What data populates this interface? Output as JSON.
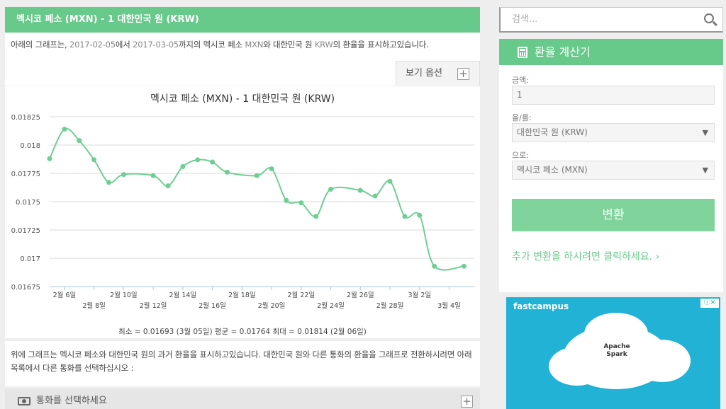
{
  "header": {
    "title": "멕시코 페소 (MXN) - 1 대한민국 원 (KRW)"
  },
  "intro": {
    "text_before": "아래의 그래프는, ",
    "date_start": "2017-02-05",
    "text_mid1": "에서 ",
    "date_end": "2017-03-05",
    "text_mid2": "까지의 멕시코 페소 ",
    "code1": "MXN",
    "text_mid3": "와 대한민국 원 ",
    "code2": "KRW",
    "text_after": "의 환율을 표시하고있습니다."
  },
  "view_options": {
    "label": "보기 옵션"
  },
  "chart_data": {
    "type": "line",
    "title": "멕시코 페소 (MXN) - 1 대한민국 원 (KRW)",
    "x": [
      "2월 5일",
      "2월 6일",
      "2월 7일",
      "2월 8일",
      "2월 9일",
      "2월 10일",
      "2월 12일",
      "2월 13일",
      "2월 14일",
      "2월 15일",
      "2월 16일",
      "2월 17일",
      "2월 19일",
      "2월 20일",
      "2월 21일",
      "2월 22일",
      "2월 23일",
      "2월 24일",
      "2월 26일",
      "2월 27일",
      "2월 28일",
      "3월 1일",
      "3월 2일",
      "3월 3일",
      "3월 5일"
    ],
    "values": [
      0.01788,
      0.01814,
      0.01804,
      0.01787,
      0.01767,
      0.01774,
      0.01773,
      0.01764,
      0.01781,
      0.01787,
      0.01785,
      0.01776,
      0.01773,
      0.01779,
      0.01751,
      0.01749,
      0.01737,
      0.01761,
      0.0176,
      0.01755,
      0.01768,
      0.01737,
      0.01738,
      0.01693,
      0.01693
    ],
    "x_positions": [
      0,
      1,
      2,
      3,
      4,
      5,
      7,
      8,
      9,
      10,
      11,
      12,
      14,
      15,
      16,
      17,
      18,
      19,
      21,
      22,
      23,
      24,
      25,
      26,
      28
    ],
    "x_tick_labels": [
      "2월 6일",
      "2월 8일",
      "2월 10일",
      "2월 12일",
      "2월 14일",
      "2월 16일",
      "2월 18일",
      "2월 20일",
      "2월 22일",
      "2월 24일",
      "2월 26일",
      "2월 28일",
      "3월 2일",
      "3월 4일"
    ],
    "y_ticks": [
      0.01675,
      0.017,
      0.01725,
      0.0175,
      0.01775,
      0.018,
      0.01825
    ],
    "y_tick_labels": [
      "0.01675",
      "0.017",
      "0.01725",
      "0.0175",
      "0.01775",
      "0.018",
      "0.01825"
    ],
    "ylim": [
      0.01675,
      0.01825
    ],
    "grid": true,
    "color": "#6fce93"
  },
  "chart_stats": "최소 = 0.01693 (3월 05일) 평균 = 0.01764 최대 = 0.01814 (2월 06일)",
  "description": "위에 그래프는 멕시코 페소와 대한민국 원의 과거 환율을 표시하고있습니다. 대한민국 원와 다른 통화의 환율을 그래프로 전환하시려면 아래 목록에서 다른 통화를 선택하십시오 :",
  "currency_select": {
    "label": "통화를 선택하세요"
  },
  "search": {
    "placeholder": "검색..."
  },
  "calculator": {
    "title": "환율 계산기",
    "amount_label": "금액:",
    "amount_value": "1",
    "from_label": "을/를:",
    "from_value": "대한민국 원 (KRW)",
    "to_label": "으로:",
    "to_value": "멕시코 페소 (MXN)",
    "convert_label": "변환",
    "more_link": "추가 변환을 하시려면 클릭하세요. ›"
  },
  "ad": {
    "logo": "fastcampus",
    "label": "Apache Spark"
  }
}
